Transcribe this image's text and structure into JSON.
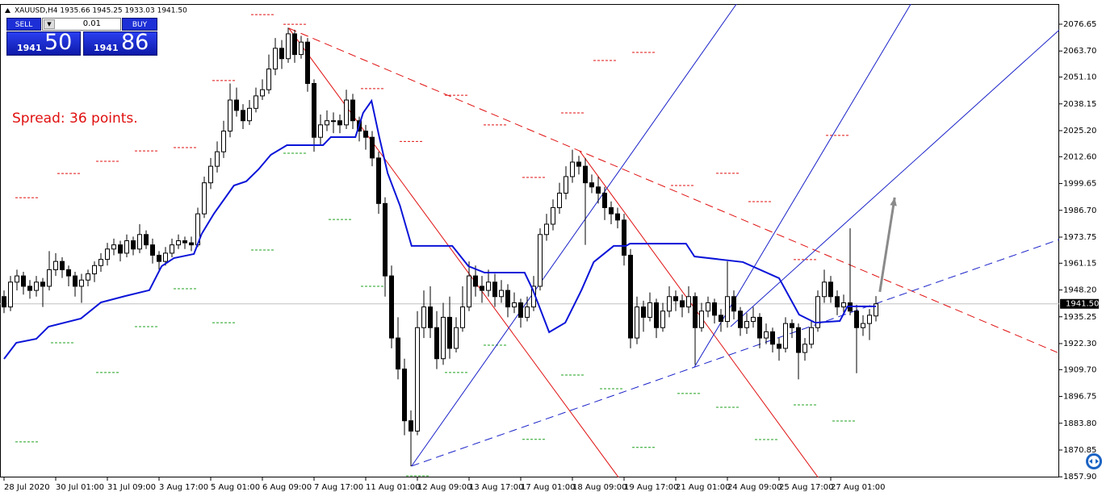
{
  "header": {
    "title": "XAUUSD,H4  1935.66 1945.25 1933.03 1941.50"
  },
  "trade_panel": {
    "sell": "SELL",
    "lot": "0.01",
    "buy": "BUY",
    "bid_main": "1941",
    "bid_pips": "50",
    "ask_main": "1941",
    "ask_pips": "86"
  },
  "spread": "Spread: 36 points.",
  "chart_data": {
    "type": "candlestick",
    "xlim": [
      -0.625,
      163.375
    ],
    "ylim": [
      1857.6,
      2086.4
    ],
    "xticks": [
      {
        "value": 0,
        "label": "28 Jul 2020"
      },
      {
        "value": 8,
        "label": "30 Jul 01:00"
      },
      {
        "value": 16,
        "label": "31 Jul 09:00"
      },
      {
        "value": 24,
        "label": "3 Aug 17:00"
      },
      {
        "value": 32,
        "label": "5 Aug 01:00"
      },
      {
        "value": 40,
        "label": "6 Aug 09:00"
      },
      {
        "value": 48,
        "label": "7 Aug 17:00"
      },
      {
        "value": 56,
        "label": "11 Aug 01:00"
      },
      {
        "value": 64,
        "label": "12 Aug 09:00"
      },
      {
        "value": 72,
        "label": "13 Aug 17:00"
      },
      {
        "value": 80,
        "label": "17 Aug 01:00"
      },
      {
        "value": 88,
        "label": "18 Aug 09:00"
      },
      {
        "value": 96,
        "label": "19 Aug 17:00"
      },
      {
        "value": 104,
        "label": "21 Aug 01:00"
      },
      {
        "value": 112,
        "label": "24 Aug 09:00"
      },
      {
        "value": 120,
        "label": "25 Aug 17:00"
      },
      {
        "value": 128,
        "label": "27 Aug 01:00"
      }
    ],
    "yticks": [
      {
        "value": 2076.65,
        "label": "2076.65"
      },
      {
        "value": 2063.7,
        "label": "2063.70"
      },
      {
        "value": 2051.1,
        "label": "2051.10"
      },
      {
        "value": 2038.15,
        "label": "2038.15"
      },
      {
        "value": 2025.2,
        "label": "2025.20"
      },
      {
        "value": 2012.6,
        "label": "2012.60"
      },
      {
        "value": 1999.65,
        "label": "1999.65"
      },
      {
        "value": 1986.7,
        "label": "1986.70"
      },
      {
        "value": 1973.75,
        "label": "1973.75"
      },
      {
        "value": 1961.15,
        "label": "1961.15"
      },
      {
        "value": 1948.2,
        "label": "1948.20"
      },
      {
        "value": 1935.25,
        "label": "1935.25"
      },
      {
        "value": 1922.3,
        "label": "1922.30"
      },
      {
        "value": 1909.7,
        "label": "1909.70"
      },
      {
        "value": 1896.75,
        "label": "1896.75"
      },
      {
        "value": 1883.8,
        "label": "1883.80"
      },
      {
        "value": 1870.85,
        "label": "1870.85"
      },
      {
        "value": 1857.9,
        "label": "1857.90"
      }
    ],
    "bid": {
      "value": 1941.5,
      "label": "1941.50"
    },
    "ohlc": [
      [
        1945,
        1948,
        1937,
        1940
      ],
      [
        1940,
        1955,
        1938,
        1952
      ],
      [
        1952,
        1958,
        1948,
        1955
      ],
      [
        1955,
        1957,
        1946,
        1950
      ],
      [
        1950,
        1953,
        1944,
        1948
      ],
      [
        1948,
        1955,
        1945,
        1952
      ],
      [
        1952,
        1954,
        1940,
        1950
      ],
      [
        1950,
        1967,
        1948,
        1958
      ],
      [
        1958,
        1966,
        1955,
        1962
      ],
      [
        1962,
        1964,
        1954,
        1958
      ],
      [
        1958,
        1960,
        1950,
        1955
      ],
      [
        1955,
        1957,
        1945,
        1950
      ],
      [
        1950,
        1956,
        1942,
        1953
      ],
      [
        1953,
        1958,
        1950,
        1956
      ],
      [
        1956,
        1962,
        1952,
        1960
      ],
      [
        1960,
        1966,
        1957,
        1963
      ],
      [
        1963,
        1971,
        1960,
        1968
      ],
      [
        1968,
        1973,
        1965,
        1970
      ],
      [
        1970,
        1972,
        1962,
        1966
      ],
      [
        1966,
        1975,
        1964,
        1972
      ],
      [
        1972,
        1974,
        1965,
        1968
      ],
      [
        1968,
        1980,
        1966,
        1975
      ],
      [
        1975,
        1977,
        1968,
        1970
      ],
      [
        1970,
        1973,
        1961,
        1965
      ],
      [
        1965,
        1967,
        1958,
        1962
      ],
      [
        1962,
        1969,
        1960,
        1966
      ],
      [
        1966,
        1973,
        1964,
        1970
      ],
      [
        1970,
        1975,
        1968,
        1972
      ],
      [
        1972,
        1974,
        1968,
        1971
      ],
      [
        1971,
        1974,
        1967,
        1970
      ],
      [
        1970,
        1988,
        1969,
        1985
      ],
      [
        1985,
        2003,
        1983,
        2000
      ],
      [
        2000,
        2012,
        1997,
        2008
      ],
      [
        2008,
        2020,
        2005,
        2015
      ],
      [
        2015,
        2030,
        2012,
        2025
      ],
      [
        2025,
        2048,
        2022,
        2040
      ],
      [
        2040,
        2046,
        2032,
        2035
      ],
      [
        2035,
        2038,
        2026,
        2030
      ],
      [
        2030,
        2040,
        2028,
        2036
      ],
      [
        2036,
        2046,
        2034,
        2042
      ],
      [
        2042,
        2050,
        2040,
        2045
      ],
      [
        2045,
        2062,
        2043,
        2055
      ],
      [
        2055,
        2070,
        2052,
        2065
      ],
      [
        2065,
        2069,
        2055,
        2060
      ],
      [
        2060,
        2075,
        2058,
        2072
      ],
      [
        2072,
        2074,
        2058,
        2062
      ],
      [
        2062,
        2071,
        2060,
        2068
      ],
      [
        2068,
        2070,
        2044,
        2048
      ],
      [
        2048,
        2050,
        2015,
        2022
      ],
      [
        2022,
        2033,
        2018,
        2028
      ],
      [
        2028,
        2035,
        2025,
        2030
      ],
      [
        2030,
        2034,
        2024,
        2030
      ],
      [
        2030,
        2033,
        2024,
        2028
      ],
      [
        2028,
        2045,
        2026,
        2040
      ],
      [
        2040,
        2043,
        2026,
        2030
      ],
      [
        2030,
        2032,
        2020,
        2025
      ],
      [
        2025,
        2028,
        2016,
        2022
      ],
      [
        2022,
        2025,
        2008,
        2012
      ],
      [
        2012,
        2015,
        1985,
        1990
      ],
      [
        1990,
        1993,
        1945,
        1955
      ],
      [
        1955,
        1960,
        1920,
        1925
      ],
      [
        1925,
        1935,
        1905,
        1910
      ],
      [
        1910,
        1915,
        1878,
        1885
      ],
      [
        1885,
        1890,
        1863,
        1880
      ],
      [
        1880,
        1938,
        1878,
        1930
      ],
      [
        1930,
        1948,
        1925,
        1940
      ],
      [
        1940,
        1950,
        1925,
        1930
      ],
      [
        1930,
        1938,
        1910,
        1915
      ],
      [
        1915,
        1942,
        1912,
        1935
      ],
      [
        1935,
        1945,
        1915,
        1920
      ],
      [
        1920,
        1935,
        1918,
        1930
      ],
      [
        1930,
        1950,
        1928,
        1940
      ],
      [
        1940,
        1962,
        1938,
        1955
      ],
      [
        1955,
        1960,
        1945,
        1950
      ],
      [
        1950,
        1955,
        1942,
        1948
      ],
      [
        1948,
        1958,
        1945,
        1952
      ],
      [
        1952,
        1956,
        1940,
        1945
      ],
      [
        1945,
        1953,
        1942,
        1948
      ],
      [
        1948,
        1951,
        1935,
        1940
      ],
      [
        1940,
        1947,
        1937,
        1942
      ],
      [
        1942,
        1944,
        1930,
        1935
      ],
      [
        1935,
        1945,
        1933,
        1940
      ],
      [
        1940,
        1955,
        1938,
        1950
      ],
      [
        1950,
        1978,
        1948,
        1975
      ],
      [
        1975,
        1985,
        1972,
        1980
      ],
      [
        1980,
        1992,
        1977,
        1988
      ],
      [
        1988,
        2000,
        1985,
        1995
      ],
      [
        1995,
        2008,
        1992,
        2003
      ],
      [
        2003,
        2016,
        2000,
        2010
      ],
      [
        2010,
        2013,
        2004,
        2008
      ],
      [
        2008,
        2012,
        1970,
        2000
      ],
      [
        2000,
        2004,
        1995,
        1998
      ],
      [
        1998,
        2003,
        1990,
        1995
      ],
      [
        1995,
        1998,
        1982,
        1988
      ],
      [
        1988,
        1991,
        1980,
        1985
      ],
      [
        1985,
        1988,
        1978,
        1982
      ],
      [
        1982,
        1985,
        1960,
        1965
      ],
      [
        1965,
        1968,
        1920,
        1925
      ],
      [
        1925,
        1945,
        1922,
        1940
      ],
      [
        1940,
        1943,
        1928,
        1935
      ],
      [
        1935,
        1947,
        1933,
        1942
      ],
      [
        1942,
        1944,
        1925,
        1930
      ],
      [
        1930,
        1942,
        1928,
        1938
      ],
      [
        1938,
        1950,
        1935,
        1945
      ],
      [
        1945,
        1948,
        1938,
        1943
      ],
      [
        1943,
        1946,
        1935,
        1940
      ],
      [
        1940,
        1950,
        1937,
        1945
      ],
      [
        1945,
        1947,
        1912,
        1930
      ],
      [
        1930,
        1942,
        1928,
        1938
      ],
      [
        1938,
        1945,
        1935,
        1942
      ],
      [
        1942,
        1944,
        1932,
        1936
      ],
      [
        1936,
        1939,
        1928,
        1933
      ],
      [
        1933,
        1962,
        1930,
        1945
      ],
      [
        1945,
        1948,
        1934,
        1938
      ],
      [
        1938,
        1940,
        1926,
        1930
      ],
      [
        1930,
        1937,
        1927,
        1933
      ],
      [
        1933,
        1940,
        1930,
        1935
      ],
      [
        1935,
        1937,
        1920,
        1925
      ],
      [
        1925,
        1932,
        1922,
        1928
      ],
      [
        1928,
        1930,
        1918,
        1922
      ],
      [
        1922,
        1925,
        1914,
        1920
      ],
      [
        1920,
        1935,
        1918,
        1932
      ],
      [
        1932,
        1934,
        1925,
        1930
      ],
      [
        1930,
        1932,
        1905,
        1918
      ],
      [
        1918,
        1925,
        1914,
        1922
      ],
      [
        1922,
        1933,
        1920,
        1930
      ],
      [
        1930,
        1948,
        1928,
        1945
      ],
      [
        1945,
        1958,
        1942,
        1952
      ],
      [
        1952,
        1955,
        1942,
        1945
      ],
      [
        1945,
        1948,
        1936,
        1940
      ],
      [
        1940,
        1946,
        1937,
        1942
      ],
      [
        1942,
        1978,
        1936,
        1938
      ],
      [
        1938,
        1941,
        1908,
        1930
      ],
      [
        1930,
        1936,
        1926,
        1932
      ],
      [
        1932,
        1939,
        1924,
        1936
      ],
      [
        1935.66,
        1945.25,
        1933.03,
        1941.5
      ]
    ],
    "indicator": {
      "color": "#0a14d8",
      "x": [
        0,
        1.9,
        5,
        6.9,
        11.9,
        15,
        18.8,
        22.5,
        24.4,
        26.3,
        29.4,
        30.6,
        32.5,
        35.6,
        37.5,
        39.4,
        41.3,
        43.8,
        49.4,
        50.6,
        54.4,
        55.6,
        56.9,
        58.1,
        59.4,
        61.3,
        63.1,
        69.4,
        71.9,
        74.4,
        80.6,
        81.9,
        84.4,
        86.9,
        89.4,
        91.3,
        94.4,
        96.3,
        96.9,
        105.6,
        106.9,
        114.4,
        120,
        123.1,
        125.6,
        129.4,
        130.6,
        135
      ],
      "values": [
        1914.9,
        1922.7,
        1924.6,
        1930.5,
        1934.4,
        1942.2,
        1945.3,
        1948.1,
        1959.7,
        1963.6,
        1965.6,
        1975.3,
        1985.1,
        1998.7,
        2000.7,
        2006.5,
        2013.5,
        2018.2,
        2018.2,
        2022.1,
        2022.1,
        2033.8,
        2039.6,
        2022.1,
        2004.6,
        1989,
        1969.5,
        1969.5,
        1959.7,
        1956.6,
        1956.6,
        1948.1,
        1927.8,
        1932.4,
        1948.1,
        1961.7,
        1969.5,
        1969.5,
        1970.6,
        1970.6,
        1964.4,
        1961.7,
        1953.9,
        1936.3,
        1932.4,
        1933.2,
        1940.3,
        1940.3
      ]
    },
    "trendlines": [
      {
        "from": [
          44.1,
          2074.7
        ],
        "to": [
          95.6,
          1855.7
        ],
        "color": "#e01010",
        "dash": false
      },
      {
        "from": [
          89.1,
          2015.5
        ],
        "to": [
          126.3,
          1856.5
        ],
        "color": "#e01010",
        "dash": false
      },
      {
        "from": [
          44.1,
          2074.7
        ],
        "to": [
          163.1,
          1918
        ],
        "color": "#e01010",
        "dash": true
      },
      {
        "from": [
          63.1,
          1863.1
        ],
        "to": [
          113.4,
          2086.4
        ],
        "color": "#1a22c8",
        "dash": false
      },
      {
        "from": [
          106.9,
          1911
        ],
        "to": [
          140.4,
          2086.4
        ],
        "color": "#1a22c8",
        "dash": false
      },
      {
        "from": [
          112.5,
          1930.5
        ],
        "to": [
          164.1,
          2075.9
        ],
        "color": "#1a22c8",
        "dash": false
      },
      {
        "from": [
          63.1,
          1863.1
        ],
        "to": [
          164.1,
          1973.4
        ],
        "color": "#1a22c8",
        "dash": true
      }
    ],
    "arrow": {
      "from": [
        135.6,
        1947.3
      ],
      "to": [
        137.9,
        1992.9
      ],
      "color": "#8a8a8a"
    },
    "levels": {
      "red": {
        "color": "#e01010",
        "points": [
          [
            3.5,
            1992.8
          ],
          [
            10,
            2004.5
          ],
          [
            16,
            2010.4
          ],
          [
            22,
            2015.4
          ],
          [
            28,
            2017
          ],
          [
            34,
            2049.4
          ],
          [
            40,
            2081.3
          ],
          [
            45,
            2076.6
          ],
          [
            57,
            2045.5
          ],
          [
            63,
            2020
          ],
          [
            70,
            2042.3
          ],
          [
            76,
            2028
          ],
          [
            82,
            2002.6
          ],
          [
            88,
            2033.8
          ],
          [
            93,
            2059.1
          ],
          [
            99,
            2063
          ],
          [
            105,
            1998.7
          ],
          [
            112,
            2004.6
          ],
          [
            117,
            1990.9
          ],
          [
            124,
            1962.9
          ],
          [
            129,
            2022.9
          ]
        ]
      },
      "green": {
        "color": "#1fa01f",
        "points": [
          [
            3.5,
            1874.8
          ],
          [
            9,
            1922.7
          ],
          [
            16,
            1908.3
          ],
          [
            22,
            1930.5
          ],
          [
            28,
            1948.8
          ],
          [
            34,
            1932.4
          ],
          [
            40,
            1967.5
          ],
          [
            45,
            2014.3
          ],
          [
            52,
            1982.3
          ],
          [
            57,
            1950
          ],
          [
            64,
            1858.4
          ],
          [
            70,
            1908.3
          ],
          [
            76,
            1921.5
          ],
          [
            82,
            1876
          ],
          [
            88,
            1907.1
          ],
          [
            94,
            1900.5
          ],
          [
            99,
            1872.1
          ],
          [
            106,
            1898.2
          ],
          [
            112,
            1891.5
          ],
          [
            118,
            1875.9
          ],
          [
            124,
            1892.7
          ],
          [
            130,
            1884.9
          ]
        ]
      }
    }
  }
}
